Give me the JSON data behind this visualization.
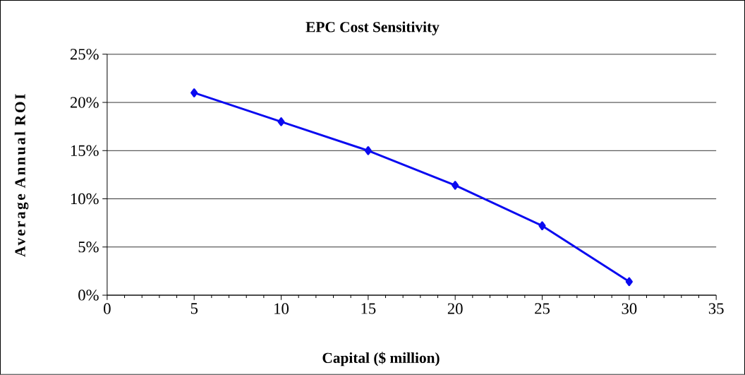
{
  "chart_data": {
    "type": "line",
    "title": "EPC Cost Sensitivity",
    "xlabel": "Capital ($ million)",
    "ylabel": "Average Annual ROI",
    "x": [
      5,
      10,
      15,
      20,
      25,
      30
    ],
    "series": [
      {
        "color": "#0a0af0",
        "values": [
          21.0,
          18.0,
          15.0,
          11.4,
          7.2,
          1.4
        ]
      }
    ],
    "xlim": [
      0,
      35
    ],
    "xticks": [
      0,
      5,
      10,
      15,
      20,
      25,
      30,
      35
    ],
    "ylim": [
      0,
      25
    ],
    "yticks": [
      {
        "value": 0,
        "label": "0%"
      },
      {
        "value": 5,
        "label": "5%"
      },
      {
        "value": 10,
        "label": "10%"
      },
      {
        "value": 15,
        "label": "15%"
      },
      {
        "value": 20,
        "label": "20%"
      },
      {
        "value": 25,
        "label": "25%"
      }
    ],
    "grid": "y",
    "marker": "diamond",
    "line_style": "solid"
  }
}
